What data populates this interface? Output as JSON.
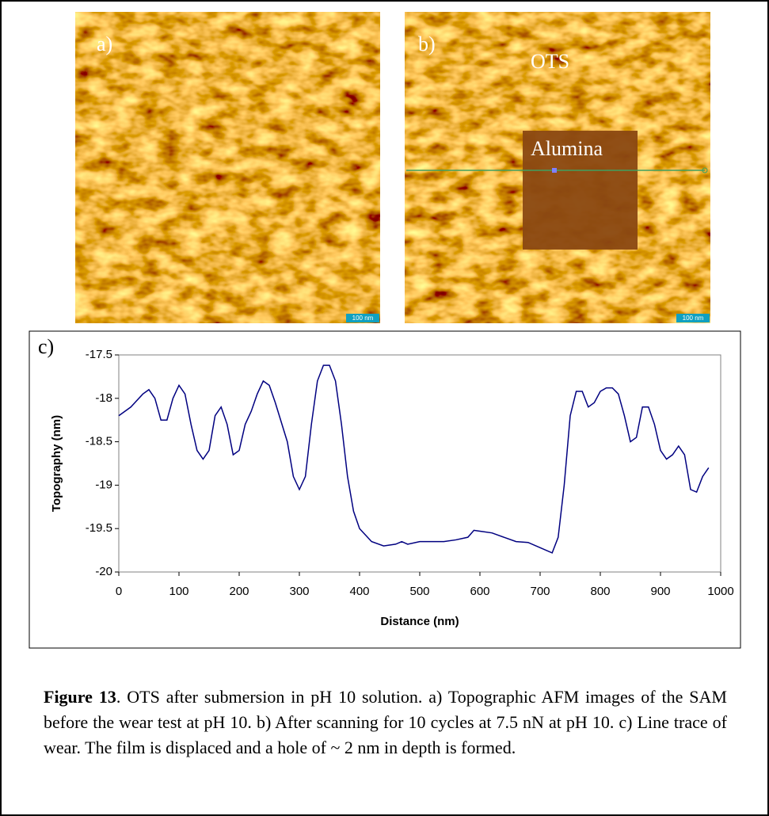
{
  "figure": {
    "panel_a": {
      "label": "a)",
      "scale_bar": "100 nm"
    },
    "panel_b": {
      "label": "b)",
      "regions": [
        "OTS",
        "Alumina"
      ],
      "scale_bar": "100 nm"
    }
  },
  "chart_data": {
    "type": "line",
    "panel_label": "c)",
    "x_label": "Distance (nm)",
    "y_label": "Topography (nm)",
    "color": "#000080",
    "x": [
      0,
      20,
      40,
      50,
      60,
      70,
      80,
      90,
      100,
      110,
      120,
      130,
      140,
      150,
      160,
      170,
      180,
      190,
      200,
      210,
      220,
      230,
      240,
      250,
      260,
      280,
      290,
      300,
      310,
      320,
      330,
      340,
      350,
      360,
      370,
      380,
      390,
      400,
      420,
      440,
      460,
      470,
      480,
      500,
      520,
      540,
      560,
      580,
      590,
      600,
      620,
      640,
      660,
      680,
      700,
      720,
      730,
      740,
      750,
      760,
      770,
      780,
      790,
      800,
      810,
      820,
      830,
      840,
      850,
      860,
      870,
      880,
      890,
      900,
      910,
      920,
      930,
      940,
      950,
      960,
      970,
      980
    ],
    "values": [
      -18.2,
      -18.1,
      -17.95,
      -17.9,
      -18.0,
      -18.25,
      -18.25,
      -18.0,
      -17.85,
      -17.95,
      -18.3,
      -18.6,
      -18.7,
      -18.6,
      -18.2,
      -18.1,
      -18.3,
      -18.65,
      -18.6,
      -18.3,
      -18.15,
      -17.95,
      -17.8,
      -17.85,
      -18.05,
      -18.5,
      -18.9,
      -19.05,
      -18.9,
      -18.3,
      -17.8,
      -17.62,
      -17.62,
      -17.8,
      -18.3,
      -18.9,
      -19.3,
      -19.5,
      -19.65,
      -19.7,
      -19.68,
      -19.65,
      -19.68,
      -19.65,
      -19.65,
      -19.65,
      -19.63,
      -19.6,
      -19.52,
      -19.53,
      -19.55,
      -19.6,
      -19.65,
      -19.66,
      -19.72,
      -19.78,
      -19.6,
      -19.0,
      -18.2,
      -17.92,
      -17.92,
      -18.1,
      -18.05,
      -17.92,
      -17.88,
      -17.88,
      -17.95,
      -18.2,
      -18.5,
      -18.45,
      -18.1,
      -18.1,
      -18.3,
      -18.6,
      -18.7,
      -18.65,
      -18.55,
      -18.65,
      -19.05,
      -19.08,
      -18.9,
      -18.8
    ],
    "xlim": [
      0,
      1000
    ],
    "xticks": [
      0,
      100,
      200,
      300,
      400,
      500,
      600,
      700,
      800,
      900,
      1000
    ],
    "ylim": [
      -20,
      -17.5
    ],
    "yticks": [
      -20,
      -19.5,
      -19,
      -18.5,
      -18,
      -17.5
    ]
  },
  "caption": {
    "label": "Figure 13",
    "text": ". OTS after submersion in pH 10 solution. a) Topographic AFM images of the SAM before the wear test at pH 10. b) After scanning for 10 cycles at 7.5 nN at pH 10. c) Line trace of wear. The film is displaced and a hole of ~ 2 nm in depth is formed."
  }
}
